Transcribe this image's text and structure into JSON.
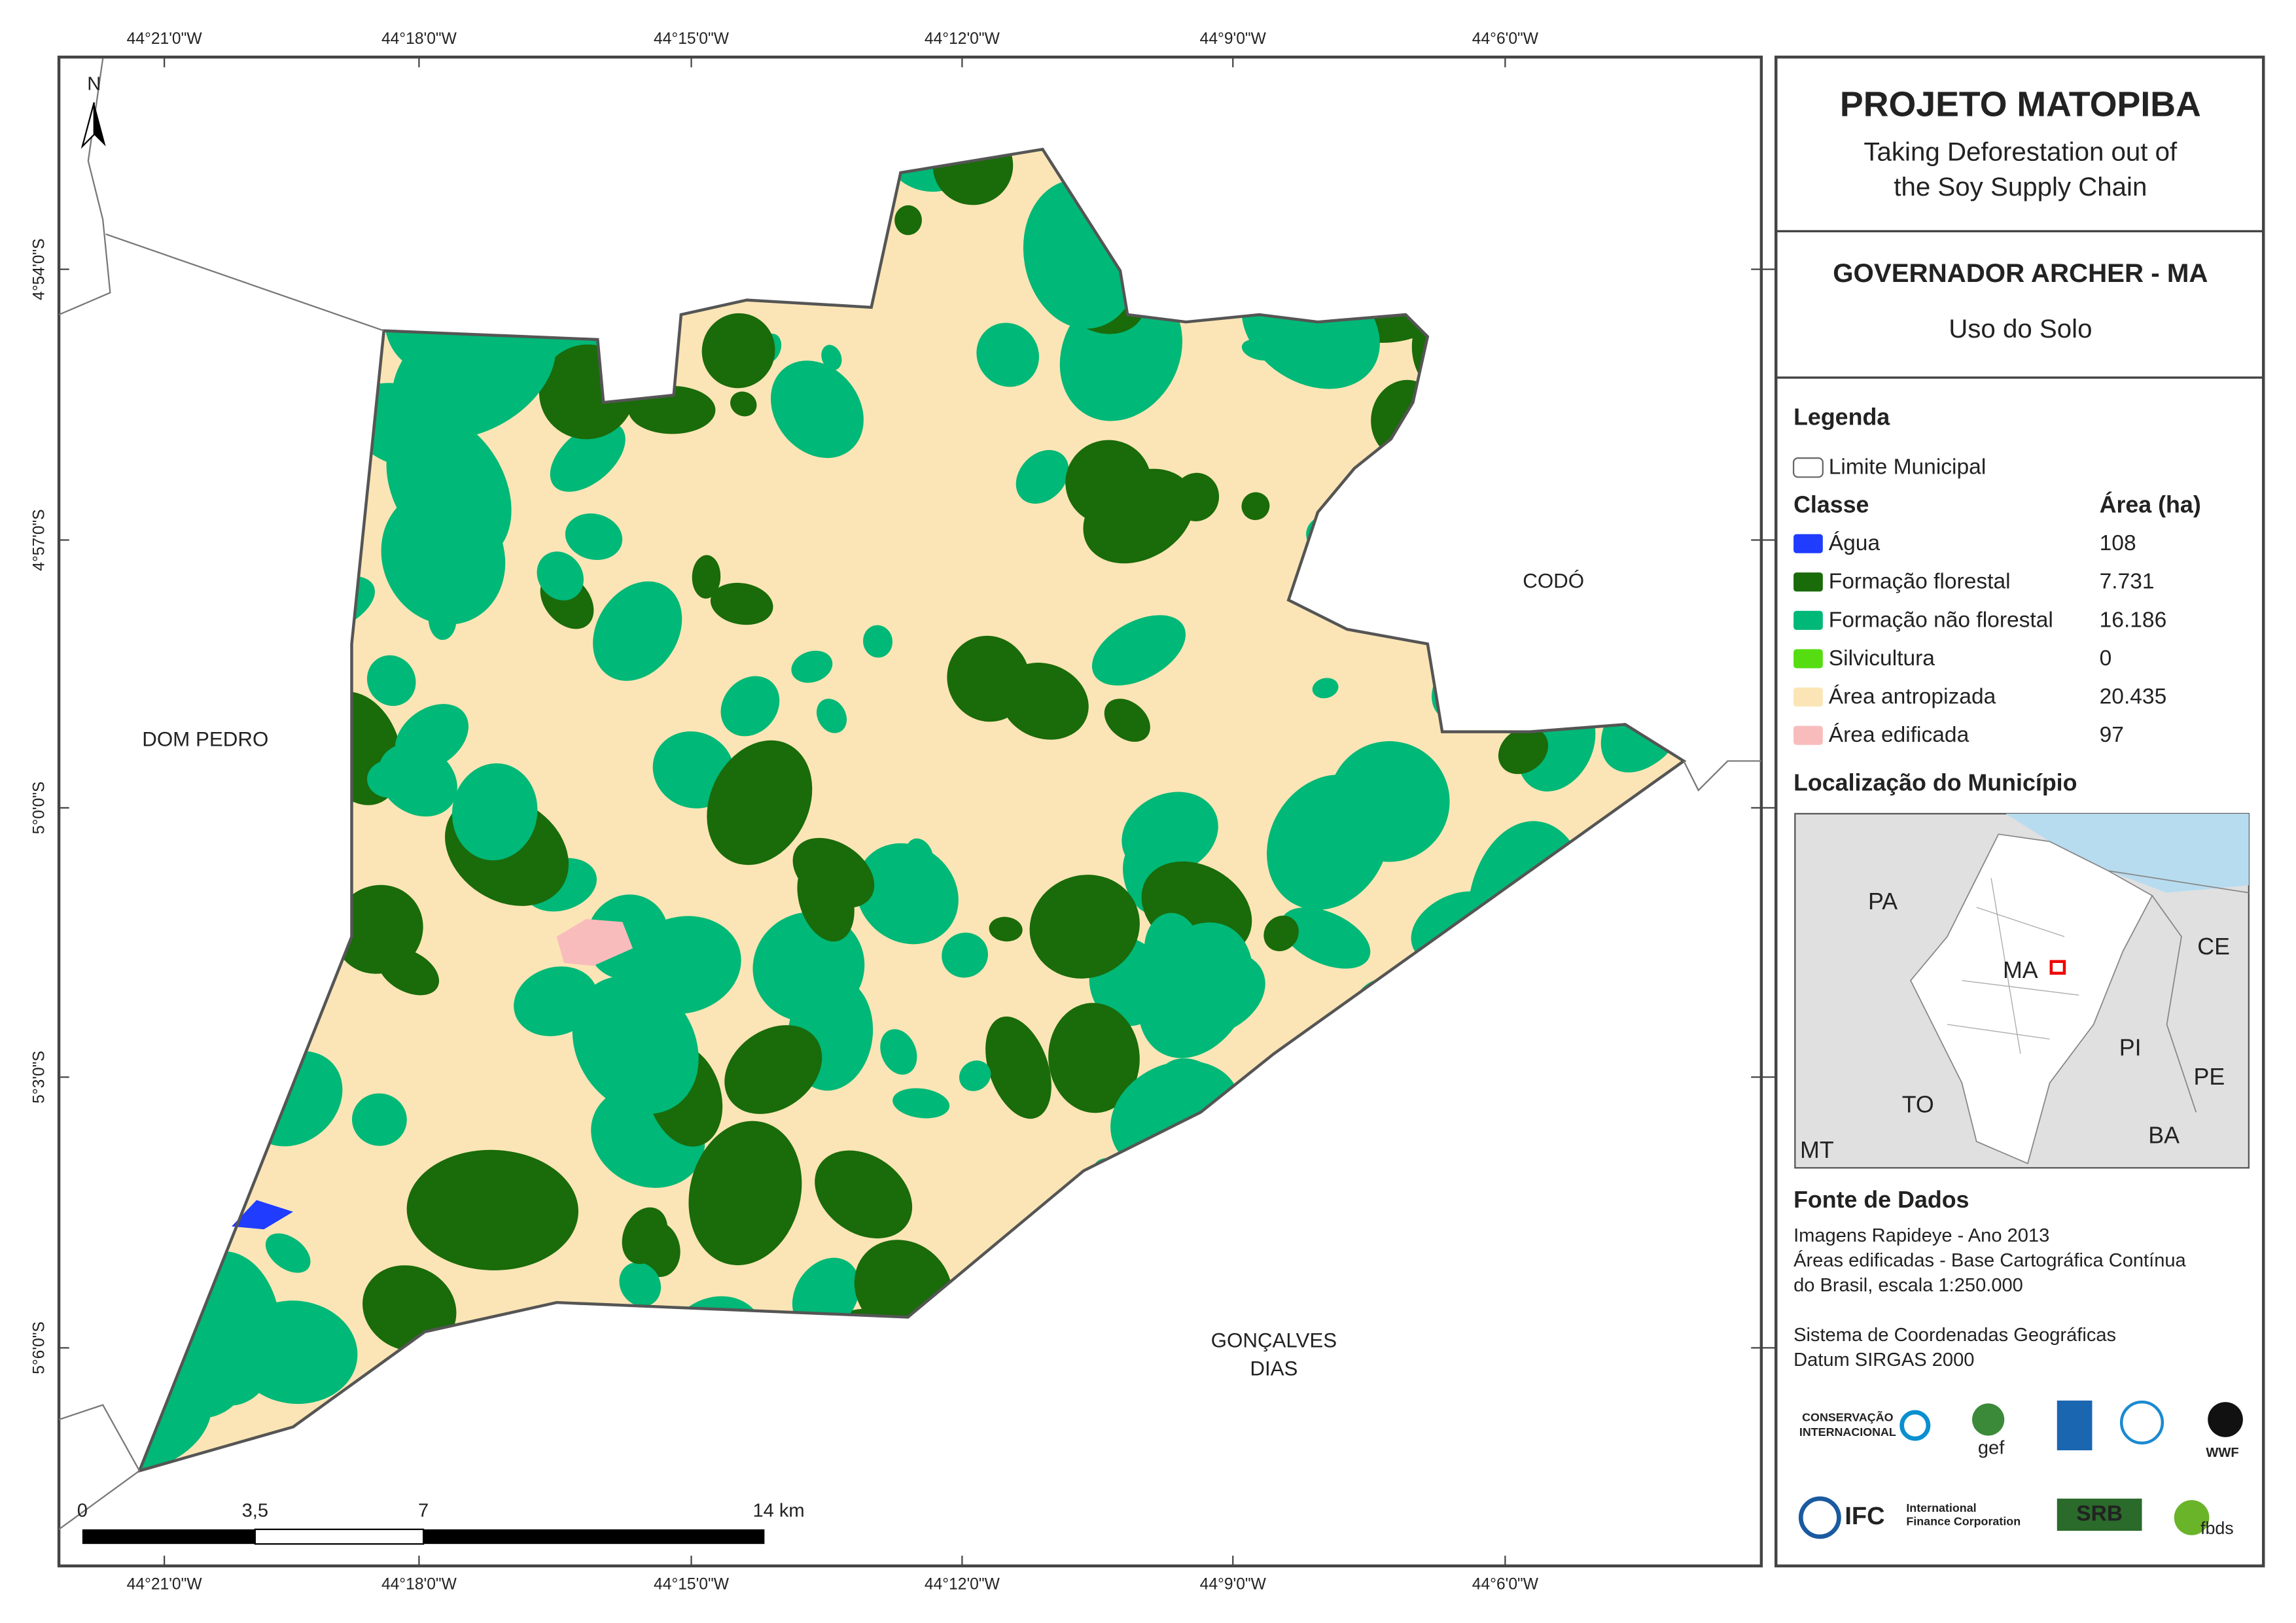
{
  "header": {
    "title": "PROJETO MATOPIBA",
    "subtitle": [
      "Taking Deforestation out of",
      "the Soy Supply Chain"
    ]
  },
  "municipality": {
    "name": "GOVERNADOR ARCHER - MA",
    "theme": "Uso do Solo"
  },
  "legend": {
    "title": "Legenda",
    "boundary": "Limite Municipal",
    "class_header": "Classe",
    "area_header": "Área (ha)",
    "items": [
      {
        "label": "Água",
        "area": "108",
        "color": "#1f3cff"
      },
      {
        "label": "Formação florestal",
        "area": "7.731",
        "color": "#1a6b0a"
      },
      {
        "label": "Formação não florestal",
        "area": "16.186",
        "color": "#00b877"
      },
      {
        "label": "Silvicultura",
        "area": "0",
        "color": "#55dd11"
      },
      {
        "label": "Área antropizada",
        "area": "20.435",
        "color": "#fbe5b6"
      },
      {
        "label": "Área edificada",
        "area": "97",
        "color": "#f9bcbc"
      }
    ]
  },
  "location": {
    "title": "Localização do Município",
    "labels": [
      "PA",
      "CE",
      "MA",
      "PI",
      "PE",
      "TO",
      "BA",
      "MT"
    ]
  },
  "sources": {
    "title": "Fonte de Dados",
    "lines": [
      "Imagens Rapideye - Ano 2013",
      "Áreas edificadas - Base Cartográfica Contínua",
      "do Brasil, escala 1:250.000",
      "Sistema de Coordenadas Geográficas",
      "Datum SIRGAS 2000"
    ]
  },
  "coordinates": {
    "longitudes": [
      "44°21'0\"W",
      "44°18'0\"W",
      "44°15'0\"W",
      "44°12'0\"W",
      "44°9'0\"W",
      "44°6'0\"W"
    ],
    "latitudes": [
      "4°54'0\"S",
      "4°57'0\"S",
      "5°0'0\"S",
      "5°3'0\"S",
      "5°6'0\"S"
    ]
  },
  "places": [
    {
      "lines": [
        "DOM PEDRO"
      ]
    },
    {
      "lines": [
        "CODÓ"
      ]
    },
    {
      "lines": [
        "GONÇALVES",
        "DIAS"
      ]
    }
  ],
  "north": "N",
  "scale": {
    "labels": [
      "0",
      "3,5",
      "7",
      "14 km"
    ]
  },
  "logos": [
    "CONSERVAÇÃO",
    "INTERNACIONAL",
    "gef",
    "WWF",
    "IFC",
    "International",
    "Finance Corporation",
    "SRB",
    "fbds"
  ]
}
